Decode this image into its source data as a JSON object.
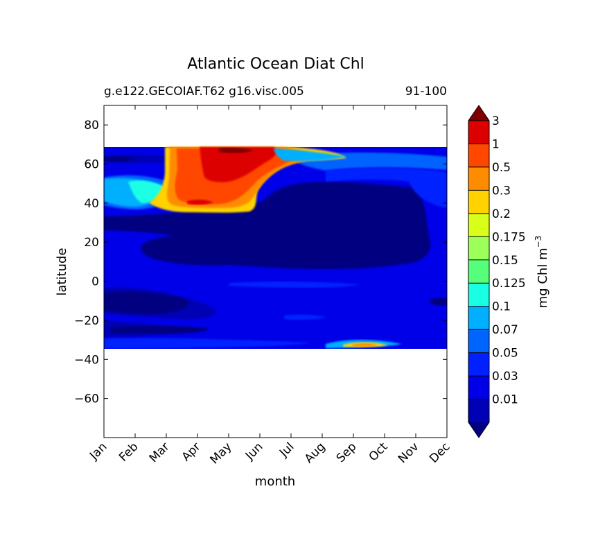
{
  "chart_data": {
    "type": "heatmap",
    "title": "Atlantic Ocean Diat Chl",
    "subtitle_left": "g.e122.GECOIAF.T62 g16.visc.005",
    "subtitle_right": "91-100",
    "xlabel": "month",
    "ylabel": "latitude",
    "x_categories": [
      "Jan",
      "Feb",
      "Mar",
      "Apr",
      "May",
      "Jun",
      "Jul",
      "Aug",
      "Sep",
      "Oct",
      "Nov",
      "Dec"
    ],
    "ylim": [
      -80,
      90
    ],
    "y_ticks": [
      80,
      60,
      40,
      20,
      0,
      -20,
      -40,
      -60
    ],
    "data_lat_range": [
      -34,
      69
    ],
    "colorbar": {
      "label": "mg Chl m",
      "label_exponent": "−3",
      "tick_labels": [
        "0.01",
        "0.03",
        "0.05",
        "0.07",
        "0.1",
        "0.125",
        "0.15",
        "0.175",
        "0.2",
        "0.3",
        "0.5",
        "1",
        "3"
      ],
      "colors": [
        "#000080",
        "#0000b5",
        "#0000e8",
        "#0020ff",
        "#0064ff",
        "#00b0ff",
        "#1affe4",
        "#55ff7a",
        "#9dff5a",
        "#d8ff1a",
        "#ffd200",
        "#ff8c00",
        "#ff4700",
        "#dd0000",
        "#800000"
      ],
      "extend": "both"
    },
    "features": [
      {
        "desc": "low-value band",
        "level": "0.01",
        "color": "#000080"
      },
      {
        "desc": "bloom",
        "level": "1",
        "color": "#dd0000"
      }
    ]
  }
}
